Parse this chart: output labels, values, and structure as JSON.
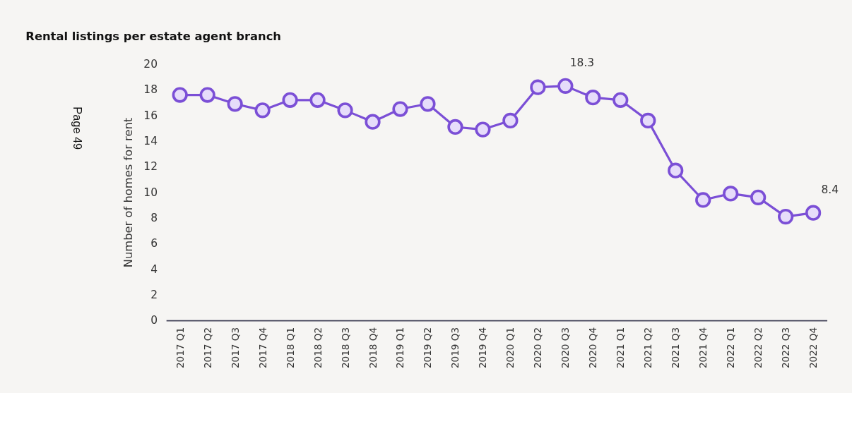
{
  "chart_data": {
    "type": "line",
    "title": "Rental listings per estate agent branch",
    "ylabel": "Number of homes for rent",
    "categories": [
      "2017 Q1",
      "2017 Q2",
      "2017 Q3",
      "2017 Q4",
      "2018 Q1",
      "2018 Q2",
      "2018 Q3",
      "2018 Q4",
      "2019 Q1",
      "2019 Q2",
      "2019 Q3",
      "2019 Q4",
      "2020 Q1",
      "2020 Q2",
      "2020 Q3",
      "2020 Q4",
      "2021 Q1",
      "2021 Q2",
      "2021 Q3",
      "2021 Q4",
      "2022 Q1",
      "2022 Q2",
      "2022 Q3",
      "2022 Q4"
    ],
    "series": [
      {
        "color": "#7b4fd6",
        "values": [
          17.6,
          17.6,
          16.9,
          16.4,
          17.2,
          17.2,
          16.4,
          15.5,
          16.5,
          16.9,
          15.1,
          14.9,
          15.6,
          18.2,
          18.3,
          17.4,
          17.2,
          15.6,
          11.7,
          9.4,
          9.9,
          9.6,
          8.1,
          8.4
        ],
        "value_labels": [
          null,
          null,
          null,
          null,
          null,
          null,
          null,
          null,
          null,
          null,
          null,
          null,
          null,
          null,
          "18.3",
          null,
          null,
          null,
          null,
          null,
          null,
          null,
          null,
          "8.4"
        ]
      }
    ],
    "ylim": [
      0,
      20
    ],
    "yticks": [
      0,
      2,
      4,
      6,
      8,
      10,
      12,
      14,
      16,
      18,
      20
    ],
    "grid": false,
    "marker": "circle",
    "line_style": "solid",
    "annotations": [
      "Page 49"
    ]
  }
}
